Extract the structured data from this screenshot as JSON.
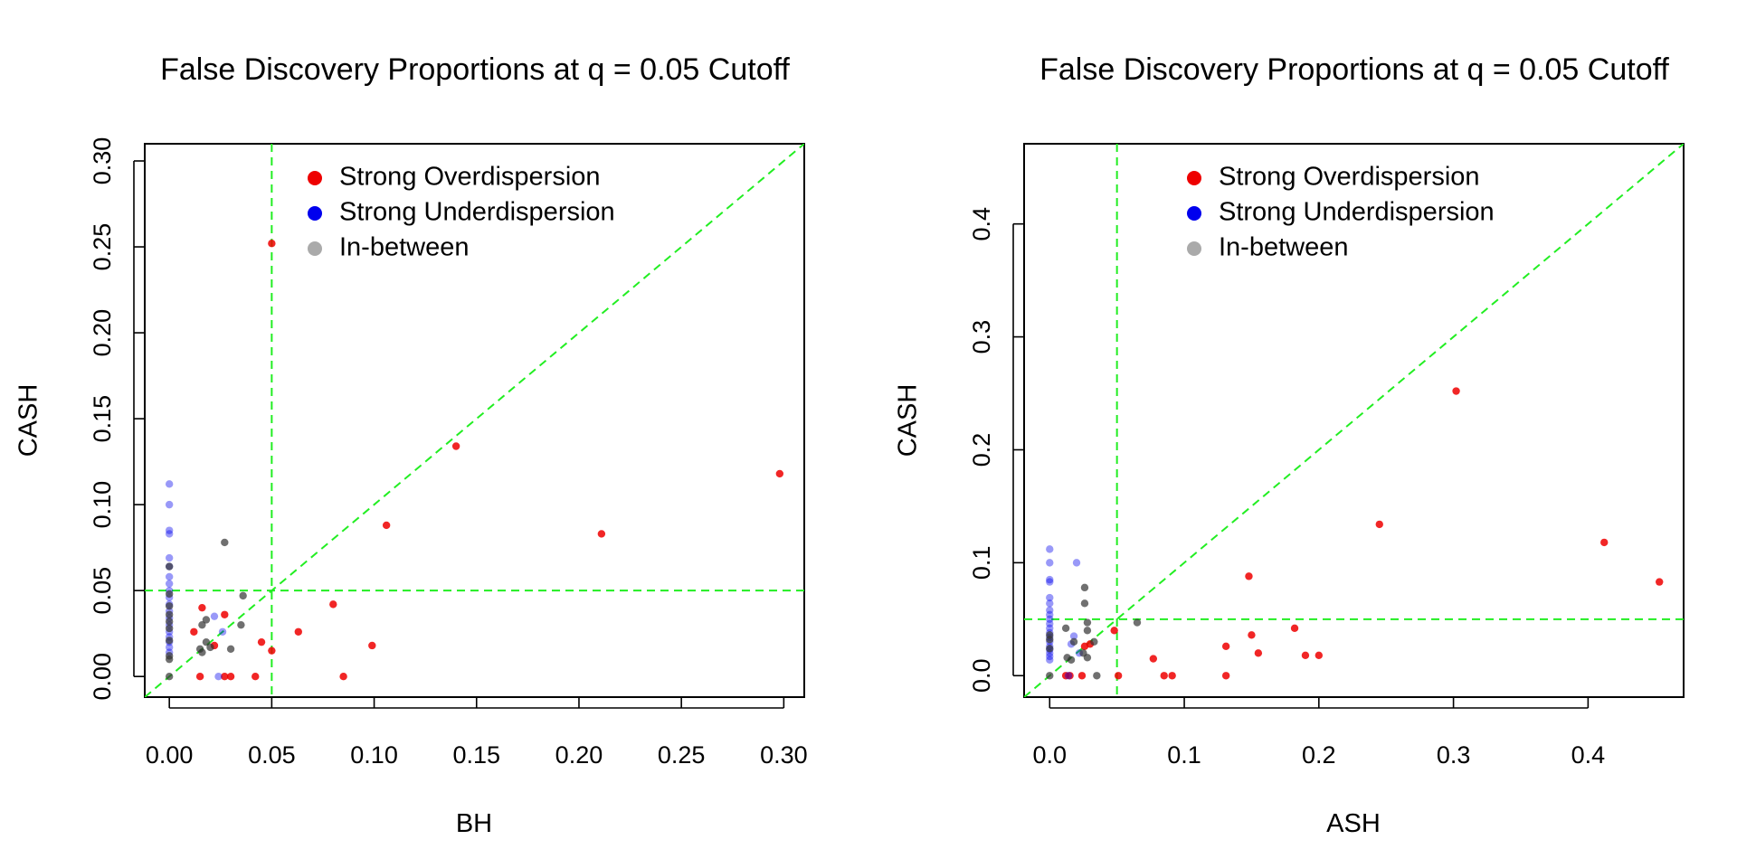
{
  "chart_data": [
    {
      "type": "scatter",
      "title": "False Discovery Proportions at q = 0.05 Cutoff",
      "xlabel": "BH",
      "ylabel": "CASH",
      "xlim": [
        -0.012,
        0.31
      ],
      "ylim": [
        -0.012,
        0.31
      ],
      "xticks": [
        "0.00",
        "0.05",
        "0.10",
        "0.15",
        "0.20",
        "0.25",
        "0.30"
      ],
      "yticks": [
        "0.00",
        "0.05",
        "0.10",
        "0.15",
        "0.20",
        "0.25",
        "0.30"
      ],
      "tick_values": [
        0,
        0.05,
        0.1,
        0.15,
        0.2,
        0.25,
        0.3
      ],
      "reference_lines": {
        "vertical": 0.05,
        "horizontal": 0.05,
        "diagonal": true,
        "color": "#22ee22"
      },
      "legend": {
        "position": "top",
        "entries": [
          {
            "label": "Strong Overdispersion",
            "color": "#ee0000"
          },
          {
            "label": "Strong Underdispersion",
            "color": "#0000ee"
          },
          {
            "label": "In-between",
            "color": "#aaaaaa"
          }
        ]
      },
      "series": [
        {
          "name": "Strong Overdispersion",
          "color": "#ee0000",
          "opacity": 0.85,
          "points": [
            [
              0.05,
              0.252
            ],
            [
              0.14,
              0.134
            ],
            [
              0.298,
              0.118
            ],
            [
              0.106,
              0.088
            ],
            [
              0.211,
              0.083
            ],
            [
              0.08,
              0.042
            ],
            [
              0.016,
              0.04
            ],
            [
              0.027,
              0.036
            ],
            [
              0.063,
              0.026
            ],
            [
              0.012,
              0.026
            ],
            [
              0.045,
              0.02
            ],
            [
              0.099,
              0.018
            ],
            [
              0.05,
              0.015
            ],
            [
              0.022,
              0.018
            ],
            [
              0.015,
              0.0
            ],
            [
              0.027,
              0.0
            ],
            [
              0.03,
              0.0
            ],
            [
              0.042,
              0.0
            ],
            [
              0.085,
              0.0
            ]
          ]
        },
        {
          "name": "Strong Underdispersion",
          "color": "#0000ee",
          "opacity": 0.4,
          "points": [
            [
              0.0,
              0.112
            ],
            [
              0.0,
              0.1
            ],
            [
              0.0,
              0.085
            ],
            [
              0.0,
              0.083
            ],
            [
              0.0,
              0.069
            ],
            [
              0.0,
              0.064
            ],
            [
              0.0,
              0.058
            ],
            [
              0.0,
              0.054
            ],
            [
              0.0,
              0.05
            ],
            [
              0.0,
              0.046
            ],
            [
              0.0,
              0.042
            ],
            [
              0.0,
              0.038
            ],
            [
              0.0,
              0.034
            ],
            [
              0.0,
              0.03
            ],
            [
              0.0,
              0.026
            ],
            [
              0.0,
              0.023
            ],
            [
              0.0,
              0.02
            ],
            [
              0.0,
              0.017
            ],
            [
              0.0,
              0.014
            ],
            [
              0.022,
              0.035
            ],
            [
              0.026,
              0.026
            ],
            [
              0.024,
              0.0
            ]
          ]
        },
        {
          "name": "In-between",
          "color": "#333333",
          "opacity": 0.7,
          "points": [
            [
              0.027,
              0.078
            ],
            [
              0.0,
              0.064
            ],
            [
              0.0,
              0.048
            ],
            [
              0.036,
              0.047
            ],
            [
              0.0,
              0.041
            ],
            [
              0.0,
              0.036
            ],
            [
              0.0,
              0.032
            ],
            [
              0.035,
              0.03
            ],
            [
              0.016,
              0.03
            ],
            [
              0.018,
              0.033
            ],
            [
              0.0,
              0.028
            ],
            [
              0.0,
              0.021
            ],
            [
              0.018,
              0.02
            ],
            [
              0.02,
              0.017
            ],
            [
              0.015,
              0.016
            ],
            [
              0.03,
              0.016
            ],
            [
              0.016,
              0.014
            ],
            [
              0.0,
              0.012
            ],
            [
              0.0,
              0.01
            ],
            [
              0.0,
              0.0
            ]
          ]
        }
      ]
    },
    {
      "type": "scatter",
      "title": "False Discovery Proportions at q = 0.05 Cutoff",
      "xlabel": "ASH",
      "ylabel": "CASH",
      "xlim": [
        -0.019,
        0.471
      ],
      "ylim": [
        -0.019,
        0.471
      ],
      "xticks": [
        "0.0",
        "0.1",
        "0.2",
        "0.3",
        "0.4"
      ],
      "yticks": [
        "0.0",
        "0.1",
        "0.2",
        "0.3",
        "0.4"
      ],
      "tick_values": [
        0,
        0.1,
        0.2,
        0.3,
        0.4
      ],
      "reference_lines": {
        "vertical": 0.05,
        "horizontal": 0.05,
        "diagonal": true,
        "color": "#22ee22"
      },
      "legend": {
        "position": "top",
        "entries": [
          {
            "label": "Strong Overdispersion",
            "color": "#ee0000"
          },
          {
            "label": "Strong Underdispersion",
            "color": "#0000ee"
          },
          {
            "label": "In-between",
            "color": "#aaaaaa"
          }
        ]
      },
      "series": [
        {
          "name": "Strong Overdispersion",
          "color": "#ee0000",
          "opacity": 0.85,
          "points": [
            [
              0.302,
              0.252
            ],
            [
              0.245,
              0.134
            ],
            [
              0.412,
              0.118
            ],
            [
              0.148,
              0.088
            ],
            [
              0.453,
              0.083
            ],
            [
              0.182,
              0.042
            ],
            [
              0.048,
              0.04
            ],
            [
              0.15,
              0.036
            ],
            [
              0.131,
              0.026
            ],
            [
              0.155,
              0.02
            ],
            [
              0.19,
              0.018
            ],
            [
              0.2,
              0.018
            ],
            [
              0.077,
              0.015
            ],
            [
              0.026,
              0.026
            ],
            [
              0.03,
              0.028
            ],
            [
              0.012,
              0.0
            ],
            [
              0.015,
              0.0
            ],
            [
              0.024,
              0.0
            ],
            [
              0.051,
              0.0
            ],
            [
              0.085,
              0.0
            ],
            [
              0.091,
              0.0
            ],
            [
              0.131,
              0.0
            ]
          ]
        },
        {
          "name": "Strong Underdispersion",
          "color": "#0000ee",
          "opacity": 0.4,
          "points": [
            [
              0.0,
              0.112
            ],
            [
              0.0,
              0.1
            ],
            [
              0.0,
              0.085
            ],
            [
              0.0,
              0.083
            ],
            [
              0.0,
              0.069
            ],
            [
              0.0,
              0.064
            ],
            [
              0.0,
              0.058
            ],
            [
              0.0,
              0.054
            ],
            [
              0.0,
              0.05
            ],
            [
              0.0,
              0.046
            ],
            [
              0.0,
              0.042
            ],
            [
              0.0,
              0.038
            ],
            [
              0.0,
              0.034
            ],
            [
              0.0,
              0.03
            ],
            [
              0.0,
              0.026
            ],
            [
              0.0,
              0.023
            ],
            [
              0.0,
              0.02
            ],
            [
              0.0,
              0.017
            ],
            [
              0.0,
              0.014
            ],
            [
              0.02,
              0.1
            ],
            [
              0.018,
              0.035
            ],
            [
              0.016,
              0.028
            ],
            [
              0.022,
              0.02
            ],
            [
              0.014,
              0.0
            ]
          ]
        },
        {
          "name": "In-between",
          "color": "#333333",
          "opacity": 0.7,
          "points": [
            [
              0.026,
              0.078
            ],
            [
              0.026,
              0.064
            ],
            [
              0.065,
              0.047
            ],
            [
              0.028,
              0.047
            ],
            [
              0.012,
              0.042
            ],
            [
              0.028,
              0.04
            ],
            [
              0.0,
              0.036
            ],
            [
              0.0,
              0.032
            ],
            [
              0.033,
              0.03
            ],
            [
              0.018,
              0.03
            ],
            [
              0.0,
              0.024
            ],
            [
              0.025,
              0.02
            ],
            [
              0.013,
              0.016
            ],
            [
              0.028,
              0.016
            ],
            [
              0.016,
              0.014
            ],
            [
              0.035,
              0.0
            ],
            [
              0.0,
              0.0
            ]
          ]
        }
      ]
    }
  ]
}
